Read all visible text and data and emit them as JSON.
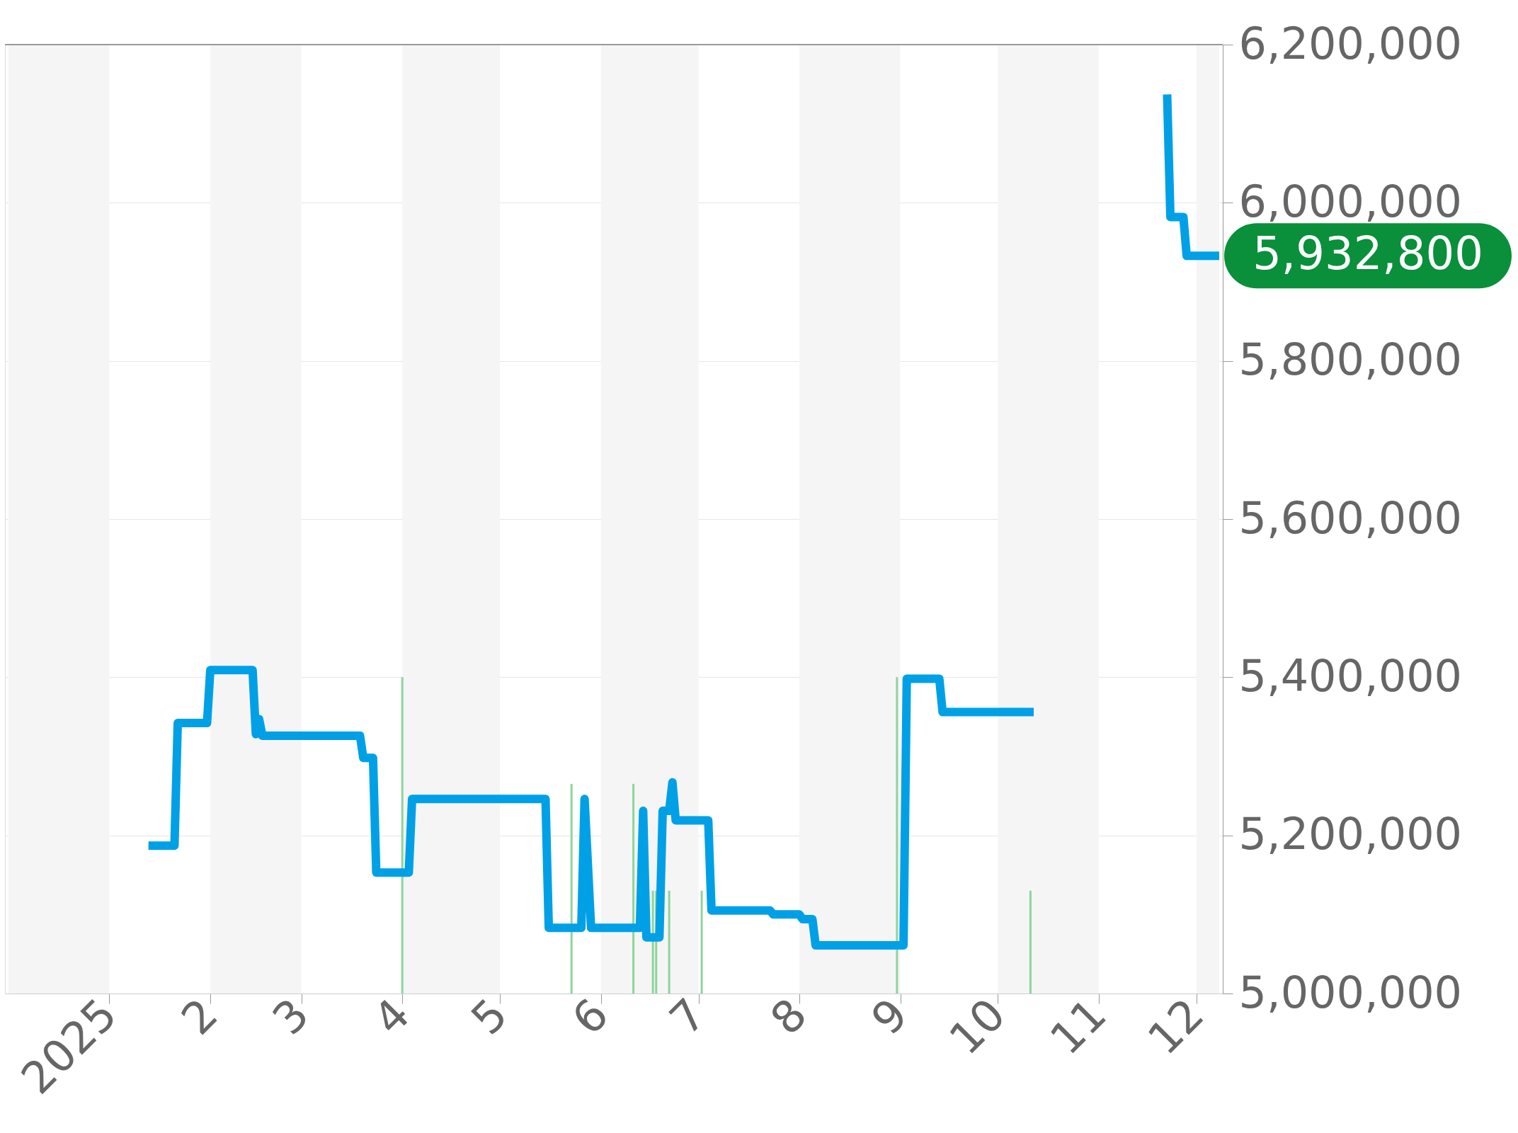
{
  "chart_data": {
    "type": "line",
    "xlim": [
      "2024-12-01",
      "2025-12-08"
    ],
    "xticks": [
      {
        "value": "2025-01-01",
        "label": "2025"
      },
      {
        "value": "2025-02-01",
        "label": "2"
      },
      {
        "value": "2025-03-01",
        "label": "3"
      },
      {
        "value": "2025-04-01",
        "label": "4"
      },
      {
        "value": "2025-05-01",
        "label": "5"
      },
      {
        "value": "2025-06-01",
        "label": "6"
      },
      {
        "value": "2025-07-01",
        "label": "7"
      },
      {
        "value": "2025-08-01",
        "label": "8"
      },
      {
        "value": "2025-09-01",
        "label": "9"
      },
      {
        "value": "2025-10-01",
        "label": "10"
      },
      {
        "value": "2025-11-01",
        "label": "11"
      },
      {
        "value": "2025-12-01",
        "label": "12"
      }
    ],
    "ylim": [
      5000000,
      6200000
    ],
    "yticks": [
      {
        "value": 5000000,
        "label": "5,000,000"
      },
      {
        "value": 5200000,
        "label": "5,200,000"
      },
      {
        "value": 5400000,
        "label": "5,400,000"
      },
      {
        "value": 5600000,
        "label": "5,600,000"
      },
      {
        "value": 5800000,
        "label": "5,800,000"
      },
      {
        "value": 6000000,
        "label": "6,000,000"
      },
      {
        "value": 6200000,
        "label": "6,200,000"
      }
    ],
    "grid": "y",
    "marker": "none",
    "line_style": "solid",
    "bands": [
      {
        "axis": "x",
        "from": "2024-12-01",
        "to": "2025-01-01",
        "color": "#f5f5f5"
      },
      {
        "axis": "x",
        "from": "2025-02-01",
        "to": "2025-03-01",
        "color": "#f5f5f5"
      },
      {
        "axis": "x",
        "from": "2025-04-01",
        "to": "2025-05-01",
        "color": "#f5f5f5"
      },
      {
        "axis": "x",
        "from": "2025-06-01",
        "to": "2025-07-01",
        "color": "#f5f5f5"
      },
      {
        "axis": "x",
        "from": "2025-08-01",
        "to": "2025-09-01",
        "color": "#f5f5f5"
      },
      {
        "axis": "x",
        "from": "2025-10-01",
        "to": "2025-11-01",
        "color": "#f5f5f5"
      },
      {
        "axis": "x",
        "from": "2025-12-01",
        "to": "2025-12-08",
        "color": "#f5f5f5"
      }
    ],
    "series": [
      {
        "type": "bar",
        "color": "#8fd49c",
        "x": [
          "2025-04-01",
          "2025-05-23",
          "2025-06-11",
          "2025-06-17",
          "2025-06-18",
          "2025-06-22",
          "2025-07-02",
          "2025-08-31",
          "2025-10-11"
        ],
        "values": [
          5400000,
          5265000,
          5265000,
          5130000,
          5130000,
          5130000,
          5130000,
          5400000,
          5130000
        ]
      },
      {
        "color": "#00a0e6",
        "x": [
          "2025-01-13",
          "2025-01-21",
          "2025-01-22",
          "2025-01-31",
          "2025-02-01",
          "2025-02-14",
          "2025-02-15",
          "2025-02-16",
          "2025-02-17",
          "2025-03-19",
          "2025-03-20",
          "2025-03-23",
          "2025-03-24",
          "2025-04-03",
          "2025-04-04",
          "2025-05-15",
          "2025-05-16",
          "2025-05-26",
          "2025-05-27",
          "2025-05-29",
          "2025-06-13",
          "2025-06-14",
          "2025-06-15",
          "2025-06-19",
          "2025-06-20",
          "2025-06-22",
          "2025-06-23",
          "2025-06-24",
          "2025-07-04",
          "2025-07-05",
          "2025-07-23",
          "2025-07-24",
          "2025-08-01",
          "2025-08-02",
          "2025-08-05",
          "2025-08-06",
          "2025-09-02",
          "2025-09-03",
          "2025-09-13",
          "2025-09-14",
          "2025-10-12",
          "2025-11-01",
          "2025-11-22",
          "2025-11-23",
          "2025-11-27",
          "2025-11-28",
          "2025-12-08"
        ],
        "values": [
          5187000,
          5187000,
          5342000,
          5342000,
          5409000,
          5409000,
          5328000,
          5347000,
          5326000,
          5326000,
          5298000,
          5298000,
          5153000,
          5153000,
          5246000,
          5246000,
          5083000,
          5083000,
          5246000,
          5083000,
          5083000,
          5231000,
          5071000,
          5071000,
          5231000,
          5231000,
          5267000,
          5219000,
          5219000,
          5105000,
          5105000,
          5100000,
          5100000,
          5094000,
          5094000,
          5061000,
          5061000,
          5398000,
          5398000,
          5356000,
          5356000,
          null,
          6137000,
          5982000,
          5982000,
          5932800,
          5932800
        ]
      }
    ],
    "annotations": [
      {
        "text": "5,932,800",
        "x": "2025-12-08",
        "y": 5932800
      }
    ]
  }
}
